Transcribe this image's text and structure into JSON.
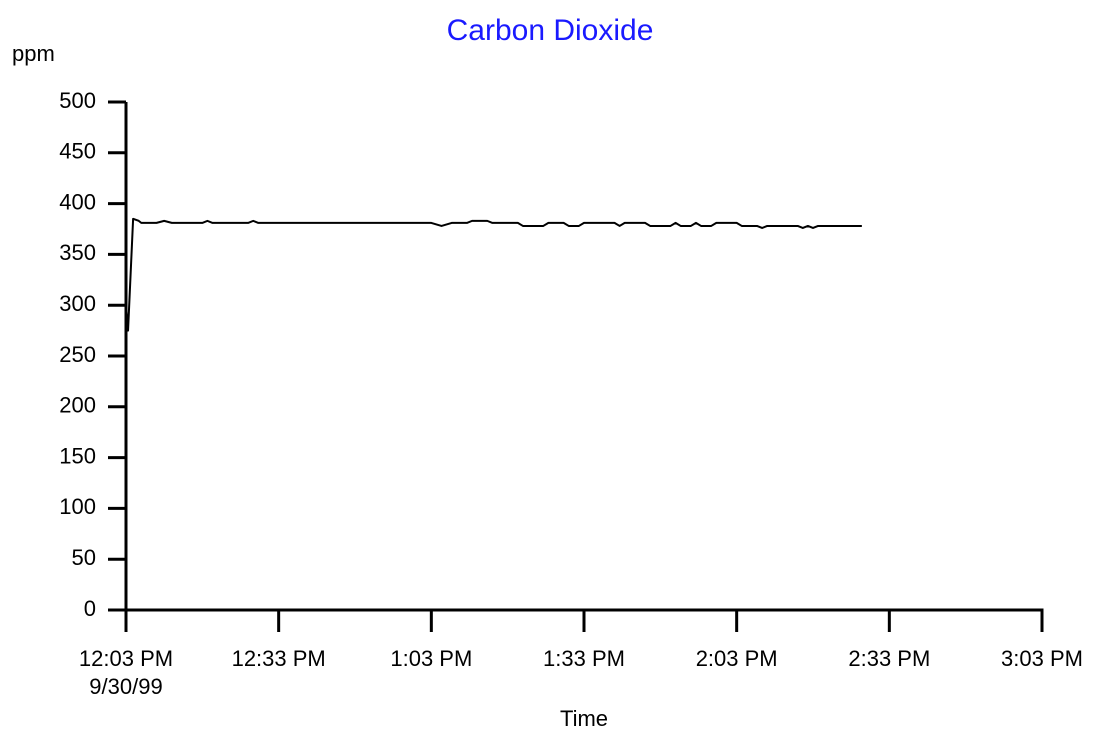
{
  "chart_data": {
    "type": "line",
    "title": "Carbon Dioxide",
    "y_label": "ppm",
    "x_label": "Time",
    "date_label": "9/30/99",
    "color": "#000000",
    "title_color": "#1a1aff",
    "x": [
      0,
      0.4,
      1.4,
      2.5,
      3,
      6,
      7.5,
      9,
      15,
      16,
      17,
      24,
      25,
      26,
      60,
      62,
      64,
      67,
      68,
      71,
      72,
      77,
      78,
      82,
      83,
      86,
      87,
      89,
      90,
      96,
      97,
      98,
      102,
      103,
      107,
      108,
      109,
      111,
      112,
      113,
      115,
      116,
      120,
      121,
      124,
      125,
      126,
      132,
      133,
      134,
      135,
      136,
      144.6
    ],
    "values": [
      300,
      275,
      385,
      383,
      381,
      381,
      383,
      381,
      381,
      383,
      381,
      381,
      383,
      381,
      381,
      378,
      381,
      381,
      383,
      383,
      381,
      381,
      378,
      378,
      381,
      381,
      378,
      378,
      381,
      381,
      378,
      381,
      381,
      378,
      378,
      381,
      378,
      378,
      381,
      378,
      378,
      381,
      381,
      378,
      378,
      376,
      378,
      378,
      376,
      378,
      376,
      378,
      378
    ],
    "xlim": [
      0,
      180
    ],
    "xticks": [
      {
        "value": 0,
        "label": "12:03 PM"
      },
      {
        "value": 30,
        "label": "12:33 PM"
      },
      {
        "value": 60,
        "label": "1:03 PM"
      },
      {
        "value": 90,
        "label": "1:33 PM"
      },
      {
        "value": 120,
        "label": "2:03 PM"
      },
      {
        "value": 150,
        "label": "2:33 PM"
      },
      {
        "value": 180,
        "label": "3:03 PM"
      }
    ],
    "ylim": [
      0,
      500
    ],
    "yticks": [
      0,
      50,
      100,
      150,
      200,
      250,
      300,
      350,
      400,
      450,
      500
    ],
    "grid": false
  }
}
